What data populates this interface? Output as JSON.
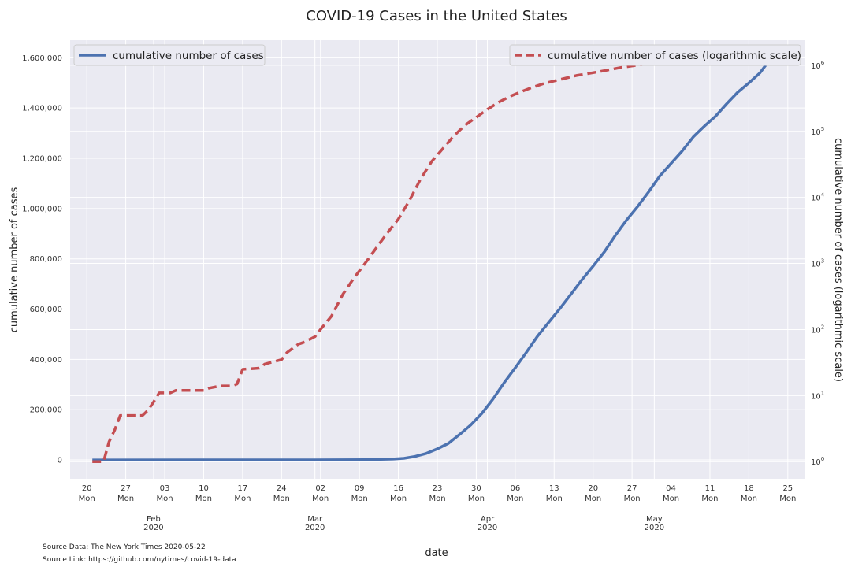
{
  "chart_data": {
    "type": "line",
    "title": "COVID-19 Cases in the United States",
    "xlabel": "date",
    "ylabel": "cumulative number of cases",
    "ylabel_right": "cumulative number of cases (logarithmic scale)",
    "grid": true,
    "ylim": [
      -75000,
      1670000
    ],
    "ylim_right_log": [
      0.55,
      2400000
    ],
    "x_weekly_ticks": [
      {
        "date": "2020-01-20",
        "day": "20",
        "weekday": "Mon"
      },
      {
        "date": "2020-01-27",
        "day": "27",
        "weekday": "Mon"
      },
      {
        "date": "2020-02-03",
        "day": "03",
        "weekday": "Mon"
      },
      {
        "date": "2020-02-10",
        "day": "10",
        "weekday": "Mon"
      },
      {
        "date": "2020-02-17",
        "day": "17",
        "weekday": "Mon"
      },
      {
        "date": "2020-02-24",
        "day": "24",
        "weekday": "Mon"
      },
      {
        "date": "2020-03-02",
        "day": "02",
        "weekday": "Mon"
      },
      {
        "date": "2020-03-09",
        "day": "09",
        "weekday": "Mon"
      },
      {
        "date": "2020-03-16",
        "day": "16",
        "weekday": "Mon"
      },
      {
        "date": "2020-03-23",
        "day": "23",
        "weekday": "Mon"
      },
      {
        "date": "2020-03-30",
        "day": "30",
        "weekday": "Mon"
      },
      {
        "date": "2020-04-06",
        "day": "06",
        "weekday": "Mon"
      },
      {
        "date": "2020-04-13",
        "day": "13",
        "weekday": "Mon"
      },
      {
        "date": "2020-04-20",
        "day": "20",
        "weekday": "Mon"
      },
      {
        "date": "2020-04-27",
        "day": "27",
        "weekday": "Mon"
      },
      {
        "date": "2020-05-04",
        "day": "04",
        "weekday": "Mon"
      },
      {
        "date": "2020-05-11",
        "day": "11",
        "weekday": "Mon"
      },
      {
        "date": "2020-05-18",
        "day": "18",
        "weekday": "Mon"
      },
      {
        "date": "2020-05-25",
        "day": "25",
        "weekday": "Mon"
      }
    ],
    "x_month_ticks": [
      {
        "date": "2020-02-01",
        "month": "Feb",
        "year": "2020"
      },
      {
        "date": "2020-03-01",
        "month": "Mar",
        "year": "2020"
      },
      {
        "date": "2020-04-01",
        "month": "Apr",
        "year": "2020"
      },
      {
        "date": "2020-05-01",
        "month": "May",
        "year": "2020"
      }
    ],
    "y_ticks": [
      {
        "value": 0,
        "label": "0"
      },
      {
        "value": 200000,
        "label": "200,000"
      },
      {
        "value": 400000,
        "label": "400,000"
      },
      {
        "value": 600000,
        "label": "600,000"
      },
      {
        "value": 800000,
        "label": "800,000"
      },
      {
        "value": 1000000,
        "label": "1,000,000"
      },
      {
        "value": 1200000,
        "label": "1,200,000"
      },
      {
        "value": 1400000,
        "label": "1,400,000"
      },
      {
        "value": 1600000,
        "label": "1,600,000"
      }
    ],
    "y_right_ticks": [
      {
        "value": 1,
        "base": "10",
        "exp": "0"
      },
      {
        "value": 10,
        "base": "10",
        "exp": "1"
      },
      {
        "value": 100,
        "base": "10",
        "exp": "2"
      },
      {
        "value": 1000,
        "base": "10",
        "exp": "3"
      },
      {
        "value": 10000,
        "base": "10",
        "exp": "4"
      },
      {
        "value": 100000,
        "base": "10",
        "exp": "5"
      },
      {
        "value": 1000000,
        "base": "10",
        "exp": "6"
      }
    ],
    "legend_left_placement": "upper-left",
    "legend_right_placement": "upper-right",
    "series": [
      {
        "name": "cumulative number of cases",
        "axis": "left",
        "color": "#4c72b0",
        "style": "solid",
        "points": [
          [
            "2020-01-21",
            1
          ],
          [
            "2020-03-01",
            80
          ],
          [
            "2020-03-10",
            1000
          ],
          [
            "2020-03-15",
            3700
          ],
          [
            "2020-03-17",
            6500
          ],
          [
            "2020-03-19",
            14000
          ],
          [
            "2020-03-21",
            26000
          ],
          [
            "2020-03-23",
            44000
          ],
          [
            "2020-03-25",
            66000
          ],
          [
            "2020-03-27",
            101000
          ],
          [
            "2020-03-29",
            139000
          ],
          [
            "2020-03-31",
            185000
          ],
          [
            "2020-04-02",
            242000
          ],
          [
            "2020-04-04",
            307000
          ],
          [
            "2020-04-06",
            366000
          ],
          [
            "2020-04-08",
            428000
          ],
          [
            "2020-04-10",
            492000
          ],
          [
            "2020-04-12",
            547000
          ],
          [
            "2020-04-14",
            601000
          ],
          [
            "2020-04-16",
            659000
          ],
          [
            "2020-04-18",
            717000
          ],
          [
            "2020-04-20",
            771000
          ],
          [
            "2020-04-22",
            827000
          ],
          [
            "2020-04-24",
            893000
          ],
          [
            "2020-04-26",
            954000
          ],
          [
            "2020-04-28",
            1008000
          ],
          [
            "2020-04-30",
            1067000
          ],
          [
            "2020-05-02",
            1130000
          ],
          [
            "2020-05-04",
            1179000
          ],
          [
            "2020-05-06",
            1229000
          ],
          [
            "2020-05-08",
            1285000
          ],
          [
            "2020-05-10",
            1328000
          ],
          [
            "2020-05-12",
            1367000
          ],
          [
            "2020-05-14",
            1417000
          ],
          [
            "2020-05-16",
            1463000
          ],
          [
            "2020-05-18",
            1500000
          ],
          [
            "2020-05-20",
            1540000
          ],
          [
            "2020-05-21",
            1570000
          ]
        ]
      },
      {
        "name": "cumulative number of cases (logarithmic scale)",
        "axis": "right",
        "scale": "log",
        "color": "#c44e52",
        "style": "dashed",
        "points": [
          [
            "2020-01-21",
            1
          ],
          [
            "2020-01-22",
            1
          ],
          [
            "2020-01-23",
            1
          ],
          [
            "2020-01-24",
            2
          ],
          [
            "2020-01-25",
            3
          ],
          [
            "2020-01-26",
            5
          ],
          [
            "2020-01-30",
            5
          ],
          [
            "2020-01-31",
            6
          ],
          [
            "2020-02-01",
            8
          ],
          [
            "2020-02-02",
            11
          ],
          [
            "2020-02-04",
            11
          ],
          [
            "2020-02-05",
            12
          ],
          [
            "2020-02-10",
            12
          ],
          [
            "2020-02-11",
            13
          ],
          [
            "2020-02-13",
            14
          ],
          [
            "2020-02-15",
            14
          ],
          [
            "2020-02-16",
            15
          ],
          [
            "2020-02-17",
            25
          ],
          [
            "2020-02-20",
            26
          ],
          [
            "2020-02-21",
            30
          ],
          [
            "2020-02-24",
            35
          ],
          [
            "2020-02-25",
            45
          ],
          [
            "2020-02-27",
            60
          ],
          [
            "2020-02-28",
            64
          ],
          [
            "2020-03-01",
            78
          ],
          [
            "2020-03-02",
            100
          ],
          [
            "2020-03-04",
            160
          ],
          [
            "2020-03-06",
            340
          ],
          [
            "2020-03-08",
            600
          ],
          [
            "2020-03-10",
            1000
          ],
          [
            "2020-03-12",
            1700
          ],
          [
            "2020-03-14",
            2900
          ],
          [
            "2020-03-16",
            4700
          ],
          [
            "2020-03-18",
            9000
          ],
          [
            "2020-03-20",
            19000
          ],
          [
            "2020-03-22",
            35000
          ],
          [
            "2020-03-24",
            55000
          ],
          [
            "2020-03-26",
            86000
          ],
          [
            "2020-03-28",
            124000
          ],
          [
            "2020-03-30",
            163000
          ],
          [
            "2020-04-01",
            215000
          ],
          [
            "2020-04-03",
            275000
          ],
          [
            "2020-04-05",
            337000
          ],
          [
            "2020-04-07",
            396000
          ],
          [
            "2020-04-09",
            460000
          ],
          [
            "2020-04-11",
            525000
          ],
          [
            "2020-04-13",
            579000
          ],
          [
            "2020-04-17",
            700000
          ],
          [
            "2020-04-21",
            799000
          ],
          [
            "2020-04-25",
            926000
          ],
          [
            "2020-04-29",
            1037000
          ],
          [
            "2020-05-03",
            1155000
          ],
          [
            "2020-05-07",
            1256000
          ],
          [
            "2020-05-11",
            1347000
          ],
          [
            "2020-05-15",
            1443000
          ],
          [
            "2020-05-19",
            1520000
          ],
          [
            "2020-05-21",
            1570000
          ]
        ]
      }
    ]
  },
  "source": {
    "data_text": "Source Data: The New York Times 2020-05-22",
    "link_text": "Source Link: https://github.com/nytimes/covid-19-data"
  }
}
